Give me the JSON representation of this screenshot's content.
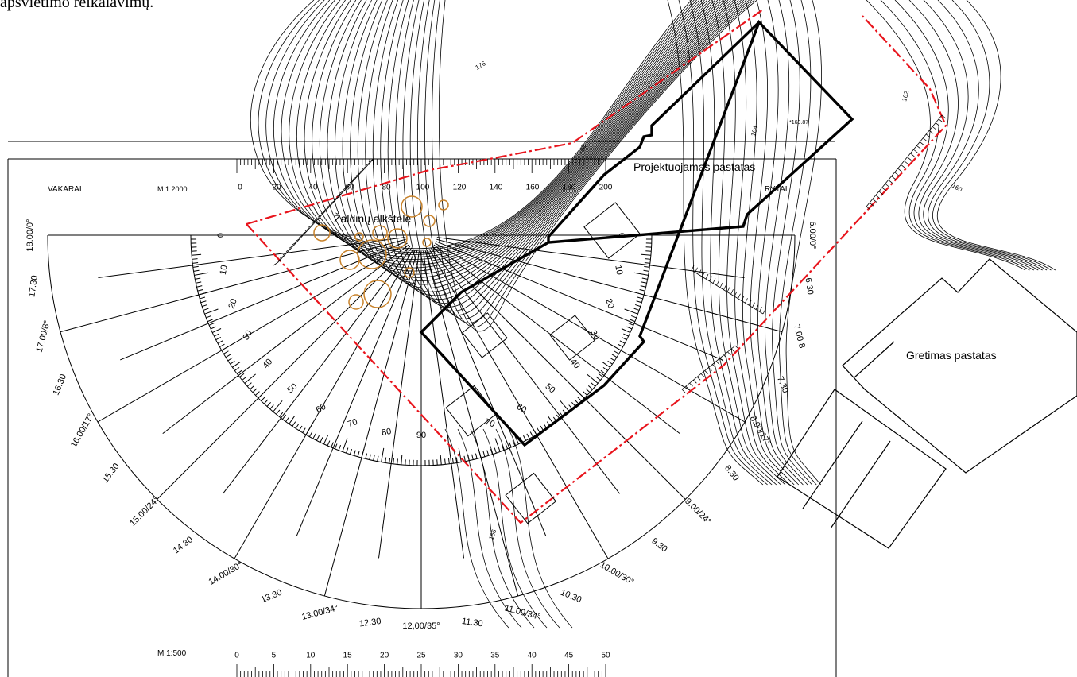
{
  "header_text": "apšvietimo reikalavimų.",
  "labels": {
    "west": "VAKARAI",
    "east": "RYTAI",
    "scale_top": "M 1:2000",
    "scale_bottom": "M 1:500",
    "project_building": "Projektuojamas pastatas",
    "green_area": "Žaldinų alkštelė",
    "neighbor_building": "Gretimas pastatas",
    "spot_elevation": "*163.87"
  },
  "scale_top_ticks": [
    "0",
    "20",
    "40",
    "60",
    "80",
    "100",
    "120",
    "140",
    "160",
    "180",
    "200"
  ],
  "scale_bottom_ticks": [
    "0",
    "5",
    "10",
    "15",
    "20",
    "25",
    "30",
    "35",
    "40",
    "45",
    "50"
  ],
  "protractor_degrees_left": [
    "0",
    "10",
    "20",
    "30",
    "40",
    "50",
    "60",
    "70",
    "80",
    "90"
  ],
  "protractor_degrees_right": [
    "0",
    "10",
    "20",
    "30",
    "40",
    "50",
    "60",
    "70"
  ],
  "sun_times": [
    {
      "label": "18.00/0°"
    },
    {
      "label": "17.30"
    },
    {
      "label": "17.00/8°"
    },
    {
      "label": "16.30"
    },
    {
      "label": "16.00/17°"
    },
    {
      "label": "15.30"
    },
    {
      "label": "15.00/24°"
    },
    {
      "label": "14.30"
    },
    {
      "label": "14.00/30°"
    },
    {
      "label": "13.30"
    },
    {
      "label": "13.00/34°"
    },
    {
      "label": "12.30"
    },
    {
      "label": "12,00/35°"
    },
    {
      "label": "11.30"
    },
    {
      "label": "11.00/34°"
    },
    {
      "label": "10.30"
    },
    {
      "label": "10.00/30°"
    },
    {
      "label": "9.30"
    },
    {
      "label": "9.00/24°"
    },
    {
      "label": "8.30"
    },
    {
      "label": "8.00/17°"
    },
    {
      "label": "7.30"
    },
    {
      "label": "7.00/8"
    },
    {
      "label": "6.30"
    },
    {
      "label": "6.00/0°"
    }
  ],
  "contour_labels": [
    "176",
    "164",
    "162",
    "166",
    "170",
    "160",
    "168"
  ],
  "colors": {
    "line": "#000000",
    "boundary": "#e8141c",
    "trees": "#c8822a"
  }
}
